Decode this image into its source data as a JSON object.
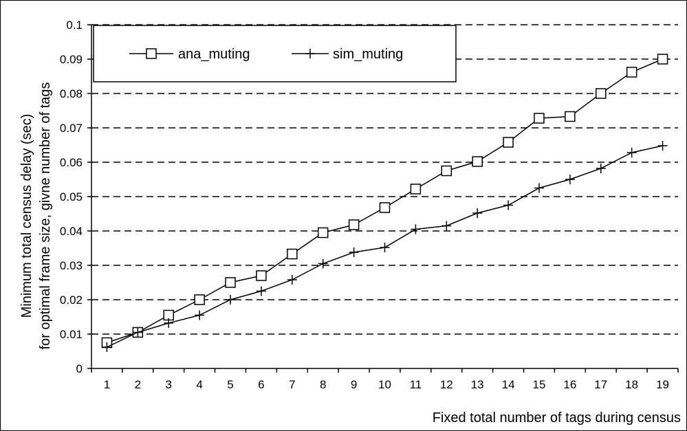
{
  "chart_data": {
    "type": "line",
    "title": "",
    "xlabel": "Fixed total number of tags during census",
    "ylabel_lines": [
      "Minimum total census delay (sec)",
      "for optimal frame size, givne number of tags"
    ],
    "categories": [
      "1",
      "2",
      "3",
      "4",
      "5",
      "6",
      "7",
      "8",
      "9",
      "10",
      "11",
      "12",
      "13",
      "14",
      "15",
      "16",
      "17",
      "18",
      "19"
    ],
    "ylim": [
      0,
      0.1
    ],
    "yticks": [
      "0",
      "0.01",
      "0.02",
      "0.03",
      "0.04",
      "0.05",
      "0.06",
      "0.07",
      "0.08",
      "0.09",
      "0.1"
    ],
    "grid": "horizontal dashed",
    "legend_position": "top-left",
    "series": [
      {
        "name": "ana_muting",
        "marker": "square",
        "values": [
          0.0075,
          0.0105,
          0.0155,
          0.02,
          0.025,
          0.027,
          0.0333,
          0.0395,
          0.0418,
          0.0468,
          0.0522,
          0.0575,
          0.0602,
          0.0658,
          0.0728,
          0.0733,
          0.08,
          0.0862,
          0.09
        ]
      },
      {
        "name": "sim_muting",
        "marker": "plus",
        "values": [
          0.0062,
          0.0105,
          0.0132,
          0.0155,
          0.02,
          0.0225,
          0.0258,
          0.0305,
          0.0338,
          0.0352,
          0.0405,
          0.0415,
          0.0452,
          0.0475,
          0.0525,
          0.055,
          0.0582,
          0.0628,
          0.0648
        ]
      }
    ],
    "colors": {
      "line": "#000000",
      "marker_fill": "#ffffff",
      "grid": "#000000",
      "frame": "#000000"
    }
  }
}
